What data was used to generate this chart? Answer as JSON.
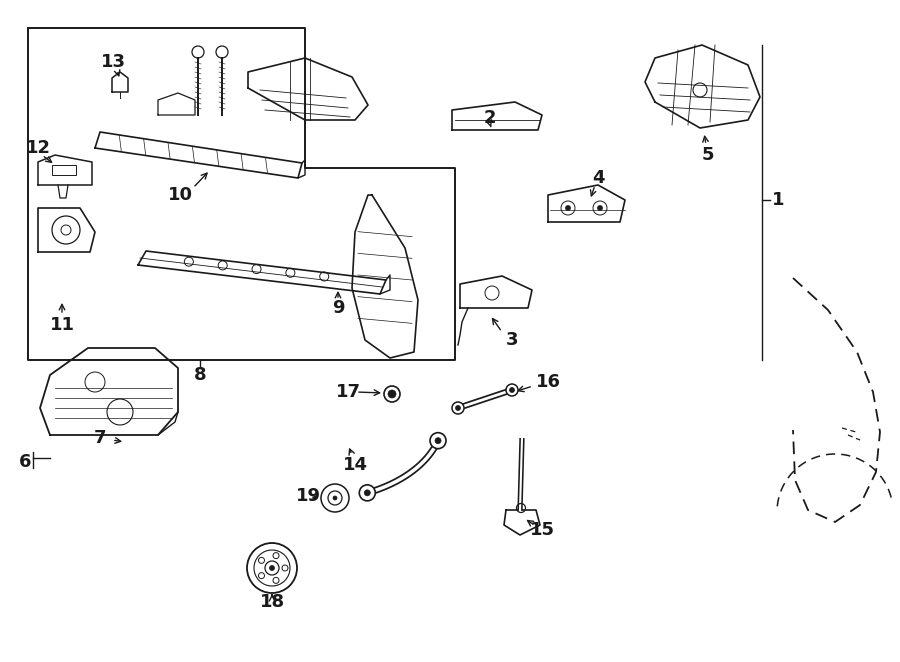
{
  "bg_color": "#ffffff",
  "line_color": "#1a1a1a",
  "fig_width": 9.0,
  "fig_height": 6.62,
  "dpi": 100
}
